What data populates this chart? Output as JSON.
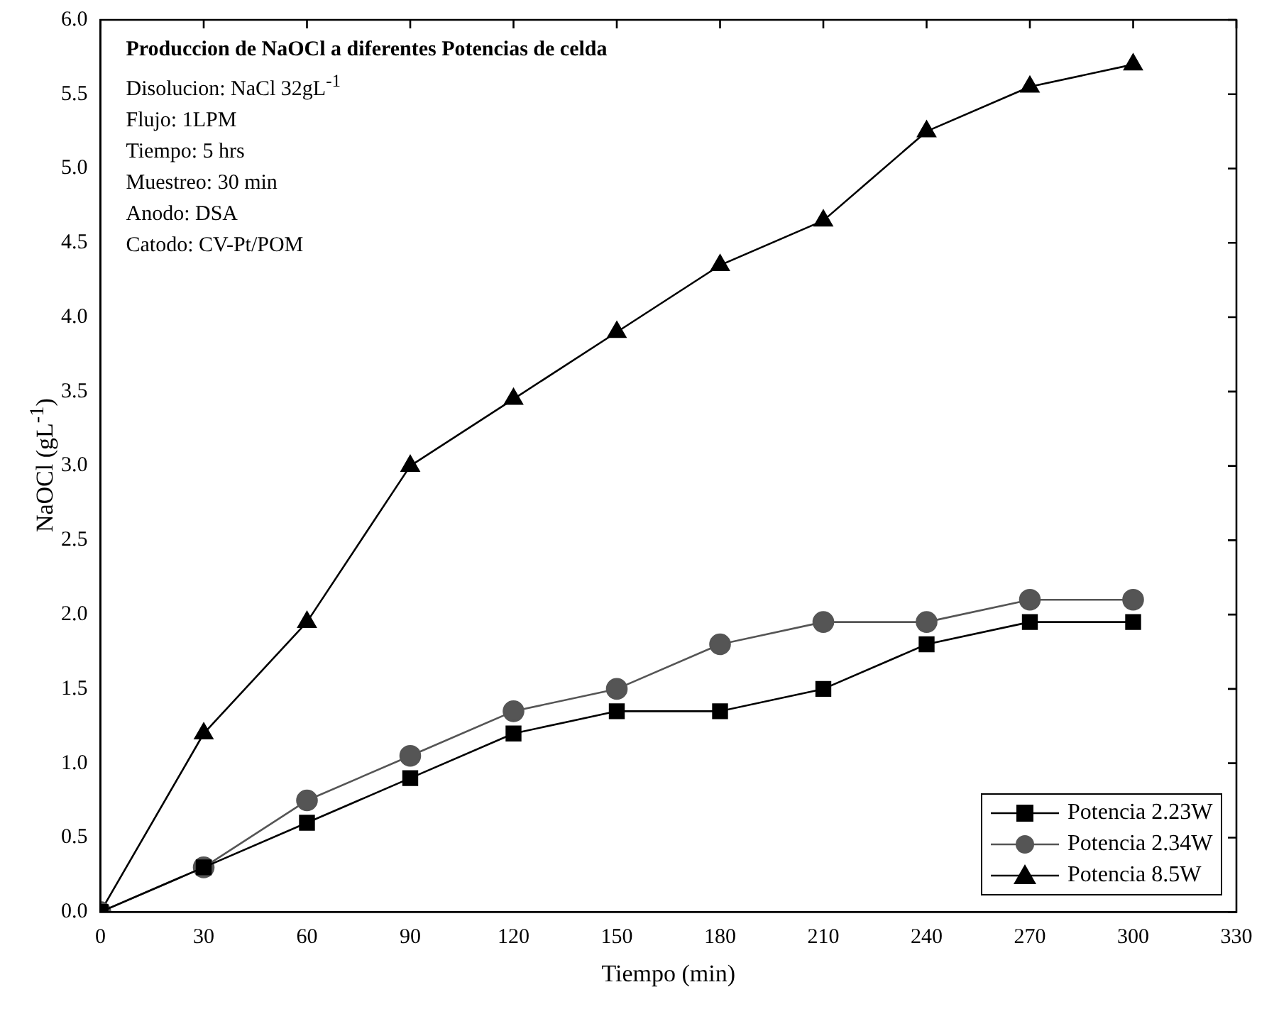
{
  "chart_data": {
    "type": "line",
    "title": "Produccion de NaOCl a diferentes Potencias de celda",
    "xlabel": "Tiempo (min)",
    "ylabel": "NaOCl (gL$^{-1}$)",
    "annotations": [
      "Disolucion: NaCl 32gL$^{-1}$",
      "Flujo: 1LPM",
      "Tiempo: 5 hrs",
      "Muestreo: 30 min",
      "Anodo: DSA",
      "Catodo: CV-Pt/POM"
    ],
    "x": [
      0,
      30,
      60,
      90,
      120,
      150,
      180,
      210,
      240,
      270,
      300
    ],
    "series": [
      {
        "name": "Potencia 2.23W",
        "color": "#000000",
        "marker": "square",
        "values": [
          0,
          0.3,
          0.6,
          0.9,
          1.2,
          1.35,
          1.35,
          1.5,
          1.8,
          1.95,
          1.95
        ]
      },
      {
        "name": "Potencia 2.34W",
        "color": "#555555",
        "marker": "circle",
        "values": [
          0,
          0.3,
          0.75,
          1.05,
          1.35,
          1.5,
          1.8,
          1.95,
          1.95,
          2.1,
          2.1
        ]
      },
      {
        "name": "Potencia 8.5W",
        "color": "#000000",
        "marker": "triangle",
        "values": [
          0,
          1.2,
          1.95,
          3.0,
          3.45,
          3.9,
          4.35,
          4.65,
          5.25,
          5.55,
          5.7
        ]
      }
    ],
    "xlim": [
      0,
      330
    ],
    "xticks": [
      0,
      30,
      60,
      90,
      120,
      150,
      180,
      210,
      240,
      270,
      300,
      330
    ],
    "ylim": [
      0,
      6
    ],
    "yticks": [
      {
        "value": 0,
        "label": "0.0"
      },
      {
        "value": 0.5,
        "label": "0.5"
      },
      {
        "value": 1,
        "label": "1.0"
      },
      {
        "value": 1.5,
        "label": "1.5"
      },
      {
        "value": 2,
        "label": "2.0"
      },
      {
        "value": 2.5,
        "label": "2.5"
      },
      {
        "value": 3,
        "label": "3.0"
      },
      {
        "value": 3.5,
        "label": "3.5"
      },
      {
        "value": 4,
        "label": "4.0"
      },
      {
        "value": 4.5,
        "label": "4.5"
      },
      {
        "value": 5,
        "label": "5.0"
      },
      {
        "value": 5.5,
        "label": "5.5"
      },
      {
        "value": 6,
        "label": "6.0"
      }
    ],
    "legend": "bottom right",
    "line_style": "solid"
  }
}
